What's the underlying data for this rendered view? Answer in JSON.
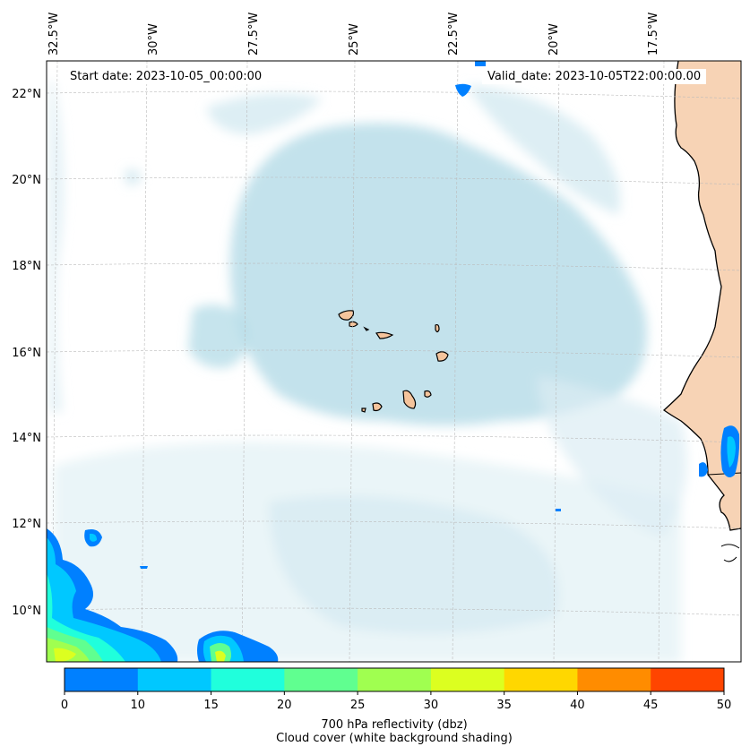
{
  "map": {
    "start_date": "Start date: 2023-10-05_00:00:00",
    "valid_date": "Valid_date: 2023-10-05T22:00:00.00",
    "lon_labels": [
      "32.5°W",
      "30°W",
      "27.5°W",
      "25°W",
      "22.5°W",
      "20°W",
      "17.5°W"
    ],
    "lat_labels": [
      "22°N",
      "20°N",
      "18°N",
      "16°N",
      "14°N",
      "12°N",
      "10°N"
    ],
    "extent": {
      "lon_min": -32.5,
      "lon_max": -15.4,
      "lat_min": 8.9,
      "lat_max": 22.7
    },
    "land_color": "#f5c49c",
    "cloud_color": "#add8e6"
  },
  "colorbar": {
    "ticks": [
      "0",
      "10",
      "15",
      "20",
      "25",
      "30",
      "35",
      "40",
      "45",
      "50"
    ],
    "colors": [
      "#0080ff",
      "#00c8ff",
      "#20ffdc",
      "#60ff90",
      "#a0ff50",
      "#dcff20",
      "#ffd700",
      "#ff8c00",
      "#ff4500"
    ],
    "label_line1": "700 hPa reflectivity (dbz)",
    "label_line2": "Cloud cover (white background shading)"
  }
}
